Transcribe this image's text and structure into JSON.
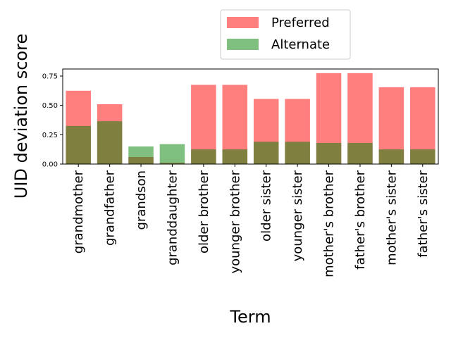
{
  "chart_data": {
    "type": "bar",
    "xlabel": "Term",
    "ylabel": "UID deviation score",
    "ylim": [
      0,
      0.81
    ],
    "yticks": [
      "0.00",
      "0.25",
      "0.50",
      "0.75"
    ],
    "categories": [
      "grandmother",
      "grandfather",
      "grandson",
      "granddaughter",
      "older brother",
      "younger brother",
      "older sister",
      "younger sister",
      "mother's brother",
      "father's brother",
      "mother's sister",
      "father's sister"
    ],
    "series": [
      {
        "name": "Preferred",
        "color": "#ff0000",
        "opacity": 0.5,
        "values": [
          0.625,
          0.51,
          0.06,
          0.01,
          0.675,
          0.675,
          0.555,
          0.555,
          0.775,
          0.775,
          0.655,
          0.655
        ]
      },
      {
        "name": "Alternate",
        "color": "#008000",
        "opacity": 0.5,
        "values": [
          0.325,
          0.365,
          0.15,
          0.17,
          0.125,
          0.125,
          0.19,
          0.19,
          0.18,
          0.18,
          0.125,
          0.125
        ]
      }
    ],
    "legend_position": "top-center",
    "grid": false
  }
}
